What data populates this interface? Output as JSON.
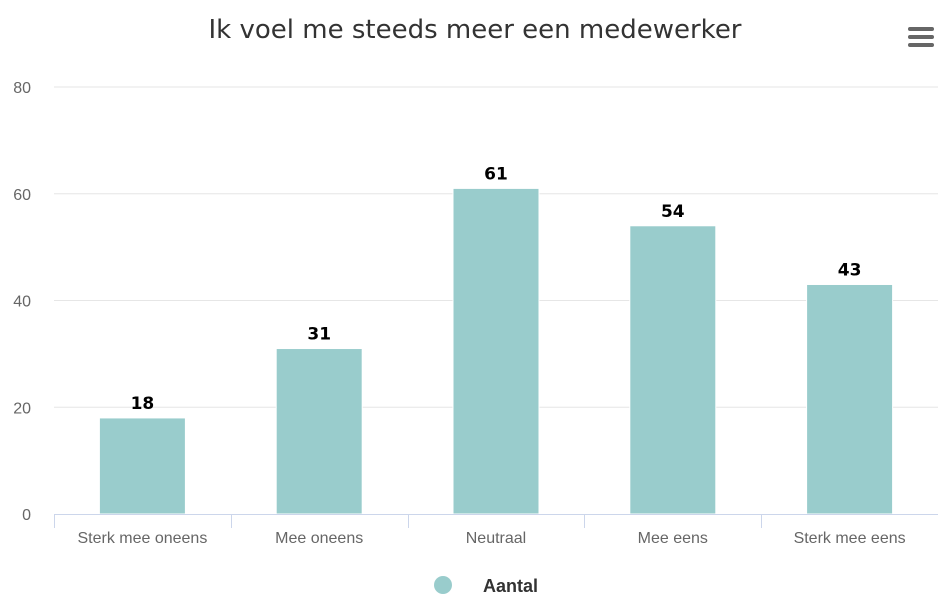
{
  "chart_data": {
    "type": "bar",
    "title": "Ik voel me steeds meer een medewerker",
    "categories": [
      "Sterk mee oneens",
      "Mee oneens",
      "Neutraal",
      "Mee eens",
      "Sterk mee eens"
    ],
    "series": [
      {
        "name": "Aantal",
        "values": [
          18,
          31,
          61,
          54,
          43
        ],
        "color": "#99cccc"
      }
    ],
    "ylim": [
      0,
      80
    ],
    "yticks": [
      0,
      20,
      40,
      60,
      80
    ],
    "grid": true,
    "legend": "bottom-center",
    "data_labels": true
  },
  "menu": {
    "icon": "hamburger-menu-icon"
  },
  "colors": {
    "bar": "#99cccc",
    "grid": "#e6e6e6",
    "axis": "#ccd6eb",
    "text": "#333333"
  }
}
